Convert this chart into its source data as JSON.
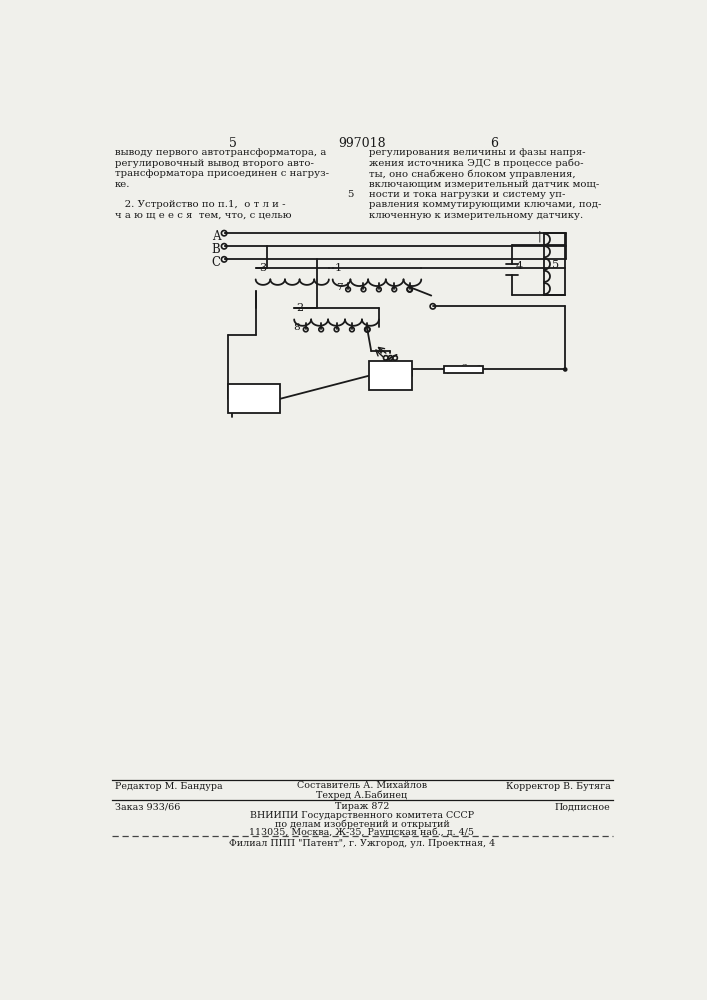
{
  "page_num_left": "5",
  "page_num_center": "997018",
  "page_num_right": "6",
  "text_left_col": [
    "выводу первого автотрансформатора, а",
    "регулировочный вывод второго авто-",
    "трансформатора присоединен с нагруз-",
    "ке.",
    "",
    "   2. Устройство по п.1,  о т л и -",
    "ч а ю щ е е с я  тем, что, с целью"
  ],
  "text_right_col": [
    "регулирования величины и фазы напря-",
    "жения источника ЭДС в процессе рабо-",
    "ты, оно снабжено блоком управления,",
    "включающим измерительный датчик мощ-",
    "ности и тока нагрузки и систему уп-",
    "равления коммутирующими ключами, под-",
    "ключенную к измерительному датчику."
  ],
  "line_number_right": "5",
  "footer_line1_left": "Редактор М. Бандура",
  "footer_line1_center": "Составитель А. Михайлов",
  "footer_line1_right": "Корректор В. Бутяга",
  "footer_line2_center": "Техред А.Бабинец",
  "footer_sub1": "Заказ 933/66",
  "footer_sub2": "Тираж 872",
  "footer_sub3": "Подписное",
  "footer_vnipi": "ВНИИПИ Государственного комитета СССР",
  "footer_vnipi2": "по делам изобретений и открытий",
  "footer_vnipi3": "113035, Москва, Ж-35, Раушская наб., д. 4/5",
  "footer_filial": "Филиал ППП \"Патент\", г. Ужгород, ул. Проектная, 4",
  "bg_color": "#f0f0eb"
}
